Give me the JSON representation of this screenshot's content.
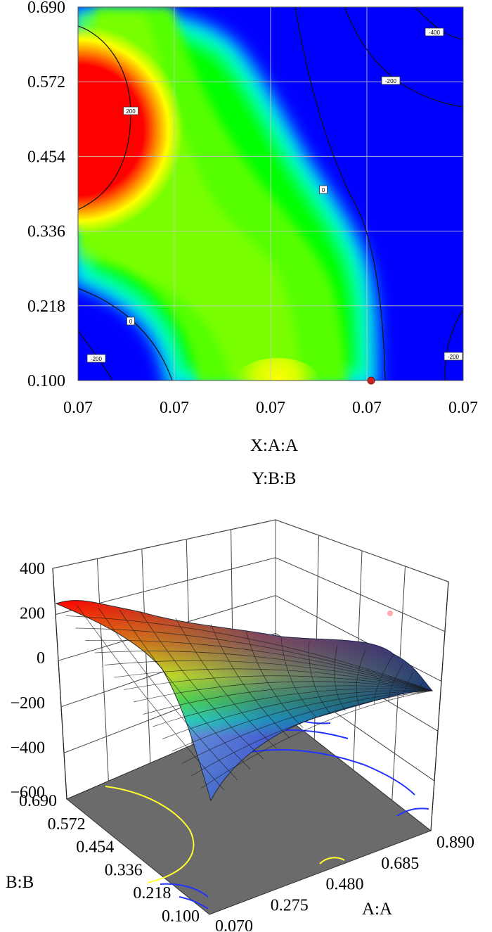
{
  "chart_data": [
    {
      "type": "heatmap",
      "subtype": "contour",
      "x_tick_labels": [
        "0.07",
        "0.07",
        "0.07",
        "0.07",
        "0.07"
      ],
      "y_tick_labels": [
        "0.100",
        "0.218",
        "0.336",
        "0.454",
        "0.572",
        "0.690"
      ],
      "xlabel": "X:A:A",
      "ylabel": "Y:B:B",
      "ylim": [
        0.1,
        0.69
      ],
      "colorscale": [
        "#0000ff",
        "#00ffff",
        "#00ff00",
        "#ffff00",
        "#ff0000"
      ],
      "grid": true,
      "contour_labels": [
        "-400",
        "-200",
        "200",
        "0",
        "0",
        "-200",
        "-200"
      ],
      "design_point_color": "#cc2222"
    },
    {
      "type": "surface",
      "x_tick_labels": [
        "0.070",
        "0.275",
        "0.480",
        "0.685",
        "0.890"
      ],
      "y_tick_labels": [
        "0.100",
        "0.218",
        "0.336",
        "0.454",
        "0.572",
        "0.690"
      ],
      "z_tick_labels": [
        "400",
        "200",
        "0",
        "−200",
        "−400",
        "−600"
      ],
      "xlabel": "A:A",
      "ylabel": "B:B",
      "xlim": [
        0.07,
        0.89
      ],
      "ylim": [
        0.1,
        0.69
      ],
      "zlim": [
        -600,
        400
      ],
      "floor_color": "#6b6b6b",
      "floor_contour_colors": [
        "#ffff33",
        "#2233ff"
      ]
    }
  ]
}
